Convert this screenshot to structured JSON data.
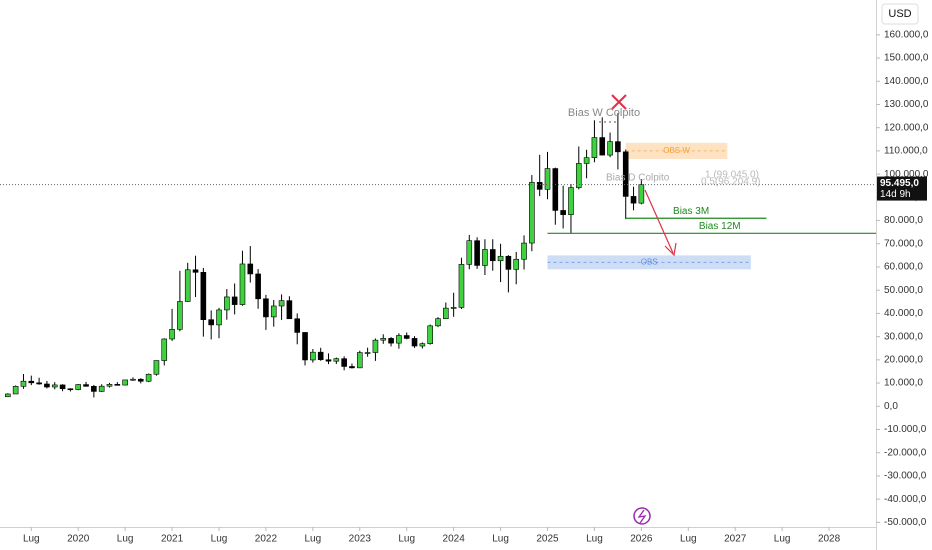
{
  "chart_data": {
    "type": "candlestick",
    "currency": "USD",
    "x": [
      "2019-04",
      "2019-05",
      "2019-06",
      "2019-07",
      "2019-08",
      "2019-09",
      "2019-10",
      "2019-11",
      "2019-12",
      "2020-01",
      "2020-02",
      "2020-03",
      "2020-04",
      "2020-05",
      "2020-06",
      "2020-07",
      "2020-08",
      "2020-09",
      "2020-10",
      "2020-11",
      "2020-12",
      "2021-01",
      "2021-02",
      "2021-03",
      "2021-04",
      "2021-05",
      "2021-06",
      "2021-07",
      "2021-08",
      "2021-09",
      "2021-10",
      "2021-11",
      "2021-12",
      "2022-01",
      "2022-02",
      "2022-03",
      "2022-04",
      "2022-05",
      "2022-06",
      "2022-07",
      "2022-08",
      "2022-09",
      "2022-10",
      "2022-11",
      "2022-12",
      "2023-01",
      "2023-02",
      "2023-03",
      "2023-04",
      "2023-05",
      "2023-06",
      "2023-07",
      "2023-08",
      "2023-09",
      "2023-10",
      "2023-11",
      "2023-12",
      "2024-01",
      "2024-02",
      "2024-03",
      "2024-04",
      "2024-05",
      "2024-06",
      "2024-07",
      "2024-08",
      "2024-09",
      "2024-10",
      "2024-11",
      "2024-12",
      "2025-01",
      "2025-02",
      "2025-03",
      "2025-04",
      "2025-05",
      "2025-06",
      "2025-07",
      "2025-08",
      "2025-09",
      "2025-10",
      "2025-11",
      "2025-12",
      "2026-01"
    ],
    "open": [
      4100,
      5300,
      8600,
      10800,
      10100,
      9600,
      8300,
      9200,
      7550,
      7200,
      9350,
      8600,
      6400,
      8650,
      9450,
      9140,
      11350,
      11650,
      10780,
      13800,
      19700,
      28990,
      33140,
      45140,
      58800,
      57700,
      37300,
      35050,
      41500,
      47100,
      43800,
      61300,
      57000,
      46300,
      38500,
      43200,
      45500,
      37700,
      31800,
      19950,
      23300,
      20050,
      19430,
      20500,
      17150,
      16550,
      23150,
      23150,
      28480,
      29250,
      27200,
      30480,
      29230,
      25950,
      26970,
      34650,
      37720,
      42280,
      42580,
      61130,
      71330,
      60670,
      67530,
      62680,
      64620,
      58970,
      63330,
      70300,
      96450,
      93430,
      102400,
      84350,
      82550,
      94200,
      104600,
      107100,
      115750,
      108200,
      114000,
      109600,
      90400,
      87500
    ],
    "high": [
      5600,
      9000,
      13900,
      13200,
      12300,
      10900,
      10400,
      9500,
      7750,
      9600,
      10500,
      9200,
      9500,
      10100,
      10400,
      11450,
      12480,
      12100,
      14100,
      19500,
      29300,
      41950,
      58350,
      61800,
      64850,
      59600,
      41300,
      42400,
      50500,
      52900,
      67000,
      69000,
      59100,
      47990,
      45800,
      48200,
      47400,
      40000,
      31900,
      24650,
      25200,
      22800,
      20990,
      21500,
      18400,
      23950,
      25250,
      29200,
      31000,
      29800,
      31400,
      31800,
      30200,
      27500,
      35200,
      38400,
      44700,
      48900,
      64000,
      73800,
      72800,
      71950,
      71950,
      70000,
      65100,
      66500,
      73600,
      99600,
      108300,
      109600,
      102800,
      95000,
      95700,
      111900,
      110500,
      123200,
      124450,
      117900,
      126200,
      110600,
      94600,
      97900
    ],
    "low": [
      4000,
      5300,
      7500,
      9100,
      9300,
      7700,
      7300,
      6500,
      6400,
      6900,
      8450,
      3800,
      6150,
      8100,
      8900,
      8950,
      10950,
      9850,
      10400,
      13200,
      17600,
      28150,
      32300,
      44950,
      47050,
      30000,
      28800,
      29300,
      37300,
      39600,
      43300,
      53300,
      42000,
      32900,
      34300,
      37200,
      37600,
      26700,
      17600,
      18800,
      19600,
      18150,
      18200,
      15500,
      16250,
      16500,
      21350,
      19550,
      26900,
      25800,
      24800,
      28850,
      25150,
      24900,
      26550,
      34100,
      37600,
      38550,
      41900,
      59000,
      59200,
      56550,
      58400,
      53500,
      49050,
      52550,
      58900,
      66800,
      90500,
      89200,
      78200,
      76600,
      74400,
      93400,
      98200,
      105100,
      108000,
      107300,
      102000,
      80600,
      84400,
      87000
    ],
    "close": [
      5300,
      8600,
      10800,
      10100,
      9600,
      8300,
      9200,
      7550,
      7200,
      9350,
      8600,
      6400,
      8650,
      9450,
      9140,
      11350,
      11650,
      10780,
      13800,
      19700,
      28990,
      33140,
      45140,
      58800,
      57700,
      37300,
      35050,
      41500,
      47100,
      43800,
      61300,
      57000,
      46300,
      38500,
      43200,
      45500,
      37700,
      31800,
      19950,
      23300,
      20050,
      19430,
      20500,
      17150,
      16550,
      23150,
      23150,
      28480,
      29250,
      27200,
      30480,
      29230,
      25950,
      26970,
      34650,
      37720,
      42280,
      42580,
      61130,
      71330,
      60670,
      67530,
      62680,
      64620,
      58970,
      63330,
      70300,
      96450,
      93430,
      102400,
      84350,
      82550,
      94200,
      104600,
      107100,
      115750,
      108200,
      114000,
      109600,
      90400,
      87500,
      95495
    ],
    "up_color": "#3fd13f",
    "down_color": "#000000",
    "xlim": [
      "2019-03",
      "2028-07"
    ],
    "xticks": [
      {
        "value": "2019-07",
        "label": "Lug"
      },
      {
        "value": "2020-01",
        "label": "2020"
      },
      {
        "value": "2020-07",
        "label": "Lug"
      },
      {
        "value": "2021-01",
        "label": "2021"
      },
      {
        "value": "2021-07",
        "label": "Lug"
      },
      {
        "value": "2022-01",
        "label": "2022"
      },
      {
        "value": "2022-07",
        "label": "Lug"
      },
      {
        "value": "2023-01",
        "label": "2023"
      },
      {
        "value": "2023-07",
        "label": "Lug"
      },
      {
        "value": "2024-01",
        "label": "2024"
      },
      {
        "value": "2024-07",
        "label": "Lug"
      },
      {
        "value": "2025-01",
        "label": "2025"
      },
      {
        "value": "2025-07",
        "label": "Lug"
      },
      {
        "value": "2026-01",
        "label": "2026"
      },
      {
        "value": "2026-07",
        "label": "Lug"
      },
      {
        "value": "2027-01",
        "label": "2027"
      },
      {
        "value": "2027-07",
        "label": "Lug"
      },
      {
        "value": "2028-01",
        "label": "2028"
      }
    ],
    "ylim": [
      -52000,
      175000
    ],
    "yticks": [
      {
        "value": -50000,
        "label": "-50.000,0"
      },
      {
        "value": -40000,
        "label": "-40.000,0"
      },
      {
        "value": -30000,
        "label": "-30.000,0"
      },
      {
        "value": -20000,
        "label": "-20.000,0"
      },
      {
        "value": -10000,
        "label": "-10.000,0"
      },
      {
        "value": 0,
        "label": "0,0"
      },
      {
        "value": 10000,
        "label": "10.000,0"
      },
      {
        "value": 20000,
        "label": "20.000,0"
      },
      {
        "value": 30000,
        "label": "30.000,0"
      },
      {
        "value": 40000,
        "label": "40.000,0"
      },
      {
        "value": 50000,
        "label": "50.000,0"
      },
      {
        "value": 60000,
        "label": "60.000,0"
      },
      {
        "value": 70000,
        "label": "70.000,0"
      },
      {
        "value": 80000,
        "label": "80.000,0"
      },
      {
        "value": 90000,
        "label": "90.000,0"
      },
      {
        "value": 100000,
        "label": "100.000,0"
      },
      {
        "value": 110000,
        "label": "110.000,0"
      },
      {
        "value": 120000,
        "label": "120.000,0"
      },
      {
        "value": 130000,
        "label": "130.000,0"
      },
      {
        "value": 140000,
        "label": "140.000,0"
      },
      {
        "value": 150000,
        "label": "150.000,0"
      },
      {
        "value": 160000,
        "label": "160.000,0"
      }
    ],
    "grid": false,
    "last_price": {
      "value": 95495,
      "label": "95.495,0",
      "countdown": "14d 9h"
    },
    "zones": [
      {
        "label": "OBS W",
        "top": 113500,
        "bottom": 106500,
        "start": "2025-11",
        "end": "2026-12",
        "color": "#f7a23b"
      },
      {
        "label": "OBS",
        "top": 65000,
        "bottom": 59000,
        "start": "2025-01",
        "end": "2027-03",
        "color": "#5b8fe0"
      }
    ],
    "levels": [
      {
        "label": "Bias 3M",
        "value": 81000,
        "start": "2025-11",
        "end": "2027-05",
        "color": "#1e8a1e"
      },
      {
        "label": "Bias 12M",
        "value": 74500,
        "start": "2025-01",
        "end": "2028-07",
        "color": "#1e8a1e"
      }
    ],
    "annotations": [
      "Bias W Colpito",
      "Bias D Colpito",
      "1 (99.045,0)",
      "0.5(96.204,9)"
    ]
  }
}
